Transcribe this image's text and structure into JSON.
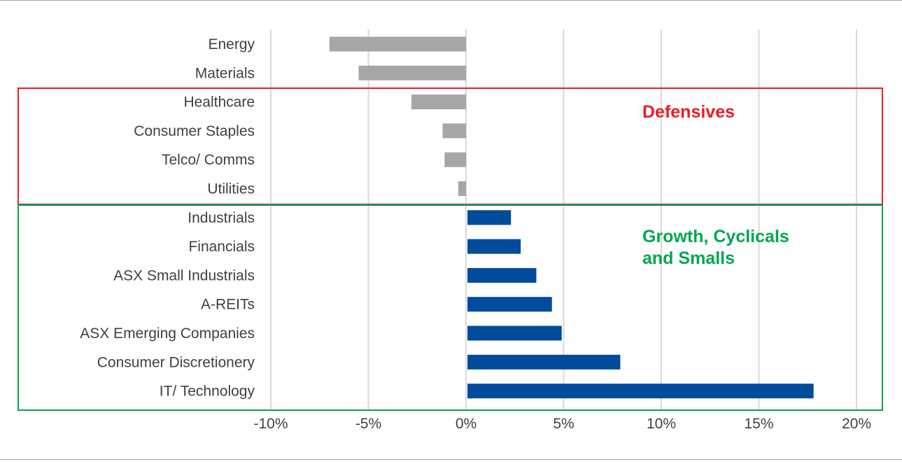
{
  "chart_data": {
    "type": "bar",
    "orientation": "horizontal",
    "categories": [
      "Energy",
      "Materials",
      "Healthcare",
      "Consumer Staples",
      "Telco/ Comms",
      "Utilities",
      "Industrials",
      "Financials",
      "ASX Small Industrials",
      "A-REITs",
      "ASX Emerging Companies",
      "Consumer Discretionery",
      "IT/ Technology"
    ],
    "values": [
      -7.0,
      -5.5,
      -2.8,
      -1.2,
      -1.1,
      -0.4,
      2.3,
      2.8,
      3.6,
      4.4,
      4.9,
      7.9,
      17.8
    ],
    "units": "%",
    "xlim": [
      -10,
      20
    ],
    "xticks": [
      -10,
      -5,
      0,
      5,
      10,
      15,
      20
    ],
    "xtick_labels": [
      "-10%",
      "-5%",
      "0%",
      "5%",
      "10%",
      "15%",
      "20%"
    ],
    "grid": "vertical",
    "title": "",
    "xlabel": "",
    "ylabel": "",
    "colors": {
      "negative": "#a6a6a6",
      "positive": "#004b9b",
      "grid": "#d9d9d9",
      "frame": "#a6a6a6"
    },
    "annotations": [
      {
        "label": "Defensives",
        "color": "#ee1c25",
        "categories": [
          "Healthcare",
          "Consumer Staples",
          "Telco/ Comms",
          "Utilities"
        ]
      },
      {
        "label": "Growth, Cyclicals and Smalls",
        "lines": [
          "Growth, Cyclicals",
          "and Smalls"
        ],
        "color": "#00a651",
        "categories": [
          "Industrials",
          "Financials",
          "ASX Small Industrials",
          "A-REITs",
          "ASX Emerging Companies",
          "Consumer Discretionery",
          "IT/ Technology"
        ]
      }
    ]
  }
}
